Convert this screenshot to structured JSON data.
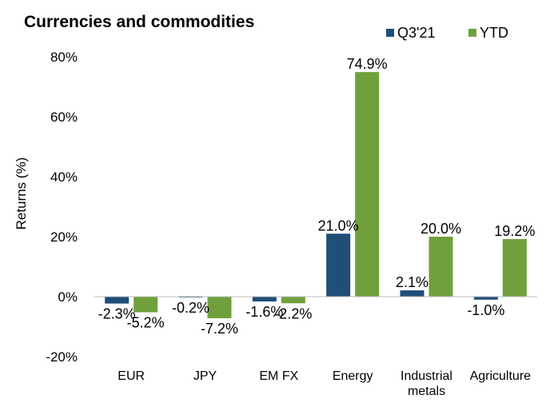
{
  "chart_data": {
    "type": "bar",
    "title": "Currencies and commodities",
    "xlabel": "",
    "ylabel": "Returns (%)",
    "ylim": [
      -20,
      80
    ],
    "yticks": [
      -20,
      0,
      20,
      40,
      60,
      80
    ],
    "ytick_labels": [
      "-20%",
      "0%",
      "20%",
      "40%",
      "60%",
      "80%"
    ],
    "categories": [
      {
        "lines": [
          "EUR"
        ]
      },
      {
        "lines": [
          "JPY"
        ]
      },
      {
        "lines": [
          "EM FX"
        ]
      },
      {
        "lines": [
          "Energy"
        ]
      },
      {
        "lines": [
          "Industrial",
          "metals"
        ]
      },
      {
        "lines": [
          "Agriculture"
        ]
      }
    ],
    "series": [
      {
        "name": "Q3'21",
        "color": "#1f4e79",
        "values": [
          -2.3,
          -0.2,
          -1.6,
          21.0,
          2.1,
          -1.0
        ],
        "labels": [
          "-2.3%",
          "-0.2%",
          "-1.6%",
          "21.0%",
          "2.1%",
          "-1.0%"
        ]
      },
      {
        "name": "YTD",
        "color": "#70a03c",
        "values": [
          -5.2,
          -7.2,
          -2.2,
          74.9,
          20.0,
          19.2
        ],
        "labels": [
          "-5.2%",
          "-7.2%",
          "-2.2%",
          "74.9%",
          "20.0%",
          "19.2%"
        ]
      }
    ],
    "grid": false,
    "legend_position": "top-right"
  }
}
